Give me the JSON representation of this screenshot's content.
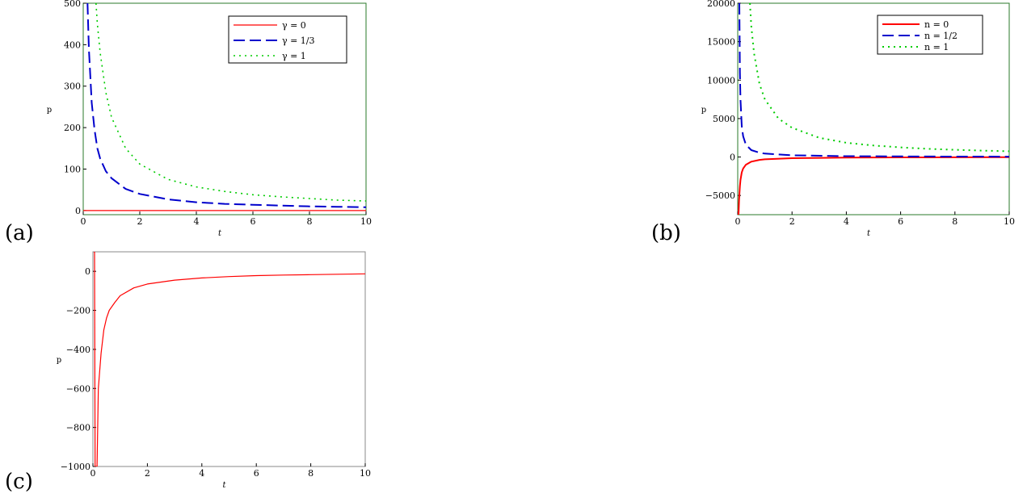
{
  "panels": [
    {
      "label": "(a)"
    },
    {
      "label": "(b)"
    },
    {
      "label": "(c)"
    }
  ],
  "chart_data": [
    {
      "type": "line",
      "xlabel": "t",
      "ylabel": "p",
      "xlim": [
        0,
        10
      ],
      "ylim": [
        -10,
        500
      ],
      "xticks": [
        0,
        2,
        4,
        6,
        8,
        10
      ],
      "yticks": [
        0,
        100,
        200,
        300,
        400,
        500
      ],
      "grid": false,
      "legend_position": "top-right",
      "series": [
        {
          "name": "γ = 0",
          "color": "#ff0000",
          "dash": "solid",
          "width": 1.2,
          "x": [
            0,
            10
          ],
          "y": [
            0,
            0
          ]
        },
        {
          "name": "γ = 1/3",
          "color": "#0000cc",
          "dash": "dashed",
          "width": 2,
          "x": [
            0.15,
            0.2,
            0.3,
            0.4,
            0.5,
            0.6,
            0.8,
            1,
            1.5,
            2,
            3,
            4,
            5,
            6,
            7,
            8,
            9,
            10
          ],
          "y": [
            500,
            390,
            260,
            195,
            150,
            125,
            95,
            78,
            52,
            40,
            27,
            20,
            16,
            14,
            12,
            10,
            9,
            8
          ]
        },
        {
          "name": "γ = 1",
          "color": "#00cc00",
          "dash": "dotted",
          "width": 1.6,
          "x": [
            0.45,
            0.5,
            0.6,
            0.8,
            1,
            1.5,
            2,
            3,
            4,
            5,
            6,
            7,
            8,
            9,
            10
          ],
          "y": [
            500,
            450,
            380,
            285,
            225,
            150,
            112,
            75,
            57,
            46,
            38,
            33,
            29,
            25,
            23
          ]
        }
      ]
    },
    {
      "type": "line",
      "xlabel": "t",
      "ylabel": "p",
      "xlim": [
        0,
        10
      ],
      "ylim": [
        -7500,
        20000
      ],
      "xticks": [
        0,
        2,
        4,
        6,
        8,
        10
      ],
      "yticks": [
        -5000,
        0,
        5000,
        10000,
        15000,
        20000
      ],
      "grid": false,
      "legend_position": "top-right",
      "series": [
        {
          "name": "n = 0",
          "color": "#ff0000",
          "dash": "solid",
          "width": 2,
          "x": [
            0.03,
            0.05,
            0.08,
            0.1,
            0.15,
            0.2,
            0.3,
            0.5,
            0.8,
            1,
            2,
            4,
            6,
            8,
            10
          ],
          "y": [
            -7500,
            -5500,
            -3800,
            -3000,
            -2000,
            -1500,
            -1000,
            -600,
            -375,
            -300,
            -150,
            -75,
            -50,
            -38,
            -30
          ]
        },
        {
          "name": "n = 1/2",
          "color": "#0000cc",
          "dash": "dashed",
          "width": 2,
          "x": [
            0.06,
            0.08,
            0.1,
            0.15,
            0.2,
            0.3,
            0.5,
            0.8,
            1,
            2,
            4,
            6,
            8,
            10
          ],
          "y": [
            20000,
            11000,
            7500,
            4000,
            2700,
            1600,
            900,
            560,
            450,
            225,
            112,
            75,
            56,
            45
          ]
        },
        {
          "name": "n = 1",
          "color": "#00cc00",
          "dash": "dotted",
          "width": 2,
          "x": [
            0.45,
            0.5,
            0.6,
            0.8,
            1,
            1.5,
            2,
            3,
            4,
            5,
            6,
            7,
            8,
            9,
            10
          ],
          "y": [
            20000,
            17000,
            13500,
            9500,
            7500,
            5000,
            3800,
            2500,
            1850,
            1500,
            1250,
            1070,
            940,
            830,
            750
          ]
        }
      ]
    },
    {
      "type": "line",
      "xlabel": "t",
      "ylabel": "p",
      "xlim": [
        0,
        10
      ],
      "ylim": [
        -1000,
        100
      ],
      "xticks": [
        0,
        2,
        4,
        6,
        8,
        10
      ],
      "yticks": [
        -1000,
        -800,
        -600,
        -400,
        -200,
        0
      ],
      "grid": false,
      "legend_position": "none",
      "series": [
        {
          "color": "#ff0000",
          "dash": "solid",
          "width": 1.2,
          "x": [
            0.03,
            0.06,
            0.08,
            0.15,
            0.2,
            0.3,
            0.4,
            0.5,
            0.6,
            0.8,
            1,
            1.5,
            2,
            3,
            4,
            5,
            6,
            7,
            8,
            9,
            10
          ],
          "y": [
            100,
            100,
            -1000,
            -1000,
            -600,
            -420,
            -300,
            -240,
            -200,
            -160,
            -125,
            -85,
            -65,
            -45,
            -34,
            -27,
            -22,
            -19,
            -17,
            -15,
            -13
          ]
        }
      ]
    }
  ]
}
